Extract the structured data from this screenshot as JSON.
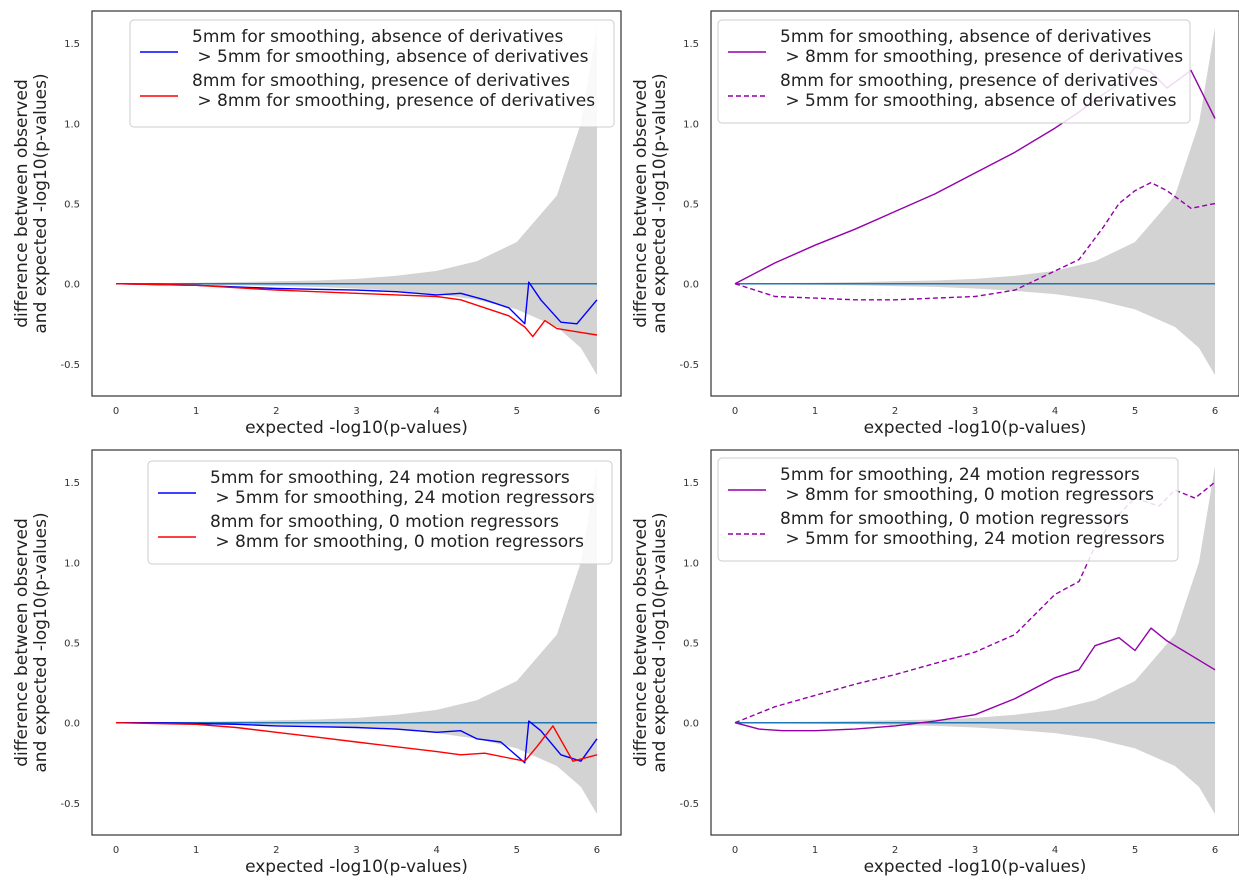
{
  "chart_data": [
    {
      "type": "line",
      "xlabel": "expected -log10(p-values)",
      "ylabel_line1": "difference between observed",
      "ylabel_line2": "and expected -log10(p-values)",
      "xlim": [
        -0.3,
        6.3
      ],
      "ylim": [
        -0.7,
        1.7
      ],
      "xticks": [
        "0",
        "1",
        "2",
        "3",
        "4",
        "5",
        "6"
      ],
      "yticks": [
        "-0.5",
        "0.0",
        "0.5",
        "1.0",
        "1.5"
      ],
      "legend": [
        {
          "line1": "5mm for smoothing, absence of derivatives",
          "line2": " > 5mm for smoothing, absence of derivatives",
          "color": "#0000ff",
          "dash": "solid"
        },
        {
          "line1": "8mm for smoothing, presence of derivatives",
          "line2": " > 8mm for smoothing, presence of derivatives",
          "color": "#ff0000",
          "dash": "solid"
        }
      ],
      "series": [
        {
          "color": "#0000ff",
          "dash": "solid",
          "x": [
            0,
            0.5,
            1.0,
            1.5,
            2.0,
            2.5,
            3.0,
            3.5,
            4.0,
            4.3,
            4.6,
            4.9,
            5.1,
            5.15,
            5.3,
            5.55,
            5.75,
            6.0
          ],
          "y": [
            0.0,
            -0.005,
            -0.01,
            -0.02,
            -0.03,
            -0.035,
            -0.04,
            -0.05,
            -0.07,
            -0.06,
            -0.1,
            -0.15,
            -0.25,
            0.01,
            -0.1,
            -0.24,
            -0.25,
            -0.1
          ]
        },
        {
          "color": "#ff0000",
          "dash": "solid",
          "x": [
            0,
            0.5,
            1.0,
            1.5,
            2.0,
            2.5,
            3.0,
            3.5,
            4.0,
            4.3,
            4.6,
            4.9,
            5.1,
            5.2,
            5.35,
            5.5,
            5.75,
            6.0
          ],
          "y": [
            0.0,
            -0.005,
            -0.01,
            -0.025,
            -0.04,
            -0.05,
            -0.06,
            -0.07,
            -0.08,
            -0.1,
            -0.15,
            -0.2,
            -0.27,
            -0.33,
            -0.23,
            -0.28,
            -0.3,
            -0.32
          ]
        }
      ],
      "band": {
        "color": "#d3d3d3",
        "x": [
          0,
          0.5,
          1.0,
          1.5,
          2.0,
          2.5,
          3.0,
          3.5,
          4.0,
          4.5,
          5.0,
          5.5,
          5.8,
          6.0
        ],
        "upper": [
          0.0,
          0.004,
          0.006,
          0.01,
          0.015,
          0.02,
          0.03,
          0.05,
          0.08,
          0.14,
          0.26,
          0.55,
          1.0,
          1.6
        ],
        "lower": [
          0.0,
          -0.004,
          -0.006,
          -0.01,
          -0.015,
          -0.02,
          -0.03,
          -0.045,
          -0.065,
          -0.1,
          -0.16,
          -0.27,
          -0.4,
          -0.57
        ]
      },
      "baseline": {
        "y": 0,
        "color": "#1f77b4"
      }
    },
    {
      "type": "line",
      "xlabel": "expected -log10(p-values)",
      "ylabel_line1": "difference between observed",
      "ylabel_line2": "and expected -log10(p-values)",
      "xlim": [
        -0.3,
        6.3
      ],
      "ylim": [
        -0.7,
        1.7
      ],
      "xticks": [
        "0",
        "1",
        "2",
        "3",
        "4",
        "5",
        "6"
      ],
      "yticks": [
        "-0.5",
        "0.0",
        "0.5",
        "1.0",
        "1.5"
      ],
      "legend": [
        {
          "line1": "5mm for smoothing, absence of derivatives",
          "line2": " > 8mm for smoothing, presence of derivatives",
          "color": "#9400aa",
          "dash": "solid"
        },
        {
          "line1": "8mm for smoothing, presence of derivatives",
          "line2": " > 5mm for smoothing, absence of derivatives",
          "color": "#9400aa",
          "dash": "dashed"
        }
      ],
      "series": [
        {
          "color": "#9400aa",
          "dash": "solid",
          "x": [
            0,
            0.5,
            1.0,
            1.5,
            2.0,
            2.5,
            3.0,
            3.5,
            4.0,
            4.3,
            4.6,
            4.9,
            5.0,
            5.2,
            5.4,
            5.7,
            6.0
          ],
          "y": [
            0.0,
            0.13,
            0.24,
            0.34,
            0.45,
            0.56,
            0.69,
            0.82,
            0.97,
            1.07,
            1.18,
            1.28,
            1.35,
            1.32,
            1.22,
            1.33,
            1.03
          ]
        },
        {
          "color": "#9400aa",
          "dash": "dashed",
          "x": [
            0,
            0.5,
            1.0,
            1.5,
            2.0,
            2.5,
            3.0,
            3.5,
            4.0,
            4.3,
            4.6,
            4.8,
            5.0,
            5.2,
            5.4,
            5.7,
            6.0
          ],
          "y": [
            0.0,
            -0.08,
            -0.09,
            -0.1,
            -0.1,
            -0.09,
            -0.08,
            -0.04,
            0.08,
            0.15,
            0.35,
            0.5,
            0.58,
            0.63,
            0.58,
            0.47,
            0.5
          ]
        }
      ],
      "band": {
        "color": "#d3d3d3",
        "x": [
          0,
          0.5,
          1.0,
          1.5,
          2.0,
          2.5,
          3.0,
          3.5,
          4.0,
          4.5,
          5.0,
          5.5,
          5.8,
          6.0
        ],
        "upper": [
          0.0,
          0.004,
          0.006,
          0.01,
          0.015,
          0.02,
          0.03,
          0.05,
          0.08,
          0.14,
          0.26,
          0.55,
          1.0,
          1.6
        ],
        "lower": [
          0.0,
          -0.004,
          -0.006,
          -0.01,
          -0.015,
          -0.02,
          -0.03,
          -0.045,
          -0.065,
          -0.1,
          -0.16,
          -0.27,
          -0.4,
          -0.57
        ]
      },
      "baseline": {
        "y": 0,
        "color": "#1f77b4"
      }
    },
    {
      "type": "line",
      "xlabel": "expected -log10(p-values)",
      "ylabel_line1": "difference between observed",
      "ylabel_line2": "and expected -log10(p-values)",
      "xlim": [
        -0.3,
        6.3
      ],
      "ylim": [
        -0.7,
        1.7
      ],
      "xticks": [
        "0",
        "1",
        "2",
        "3",
        "4",
        "5",
        "6"
      ],
      "yticks": [
        "-0.5",
        "0.0",
        "0.5",
        "1.0",
        "1.5"
      ],
      "legend": [
        {
          "line1": "5mm for smoothing, 24 motion regressors",
          "line2": " > 5mm for smoothing, 24 motion regressors",
          "color": "#0000ff",
          "dash": "solid"
        },
        {
          "line1": "8mm for smoothing, 0 motion regressors",
          "line2": " > 8mm for smoothing, 0 motion regressors",
          "color": "#ff0000",
          "dash": "solid"
        }
      ],
      "series": [
        {
          "color": "#0000ff",
          "dash": "solid",
          "x": [
            0,
            0.5,
            1.0,
            1.5,
            2.0,
            2.5,
            3.0,
            3.5,
            4.0,
            4.3,
            4.5,
            4.8,
            5.1,
            5.15,
            5.3,
            5.55,
            5.8,
            6.0
          ],
          "y": [
            0.0,
            0.0,
            -0.005,
            -0.01,
            -0.02,
            -0.025,
            -0.03,
            -0.04,
            -0.06,
            -0.05,
            -0.1,
            -0.12,
            -0.25,
            0.01,
            -0.05,
            -0.2,
            -0.24,
            -0.1
          ]
        },
        {
          "color": "#ff0000",
          "dash": "solid",
          "x": [
            0,
            0.5,
            1.0,
            1.5,
            2.0,
            2.5,
            3.0,
            3.5,
            4.0,
            4.3,
            4.6,
            4.9,
            5.1,
            5.25,
            5.45,
            5.7,
            6.0
          ],
          "y": [
            0.0,
            -0.005,
            -0.01,
            -0.03,
            -0.06,
            -0.09,
            -0.12,
            -0.15,
            -0.18,
            -0.2,
            -0.19,
            -0.22,
            -0.24,
            -0.15,
            -0.02,
            -0.24,
            -0.2
          ]
        }
      ],
      "band": {
        "color": "#d3d3d3",
        "x": [
          0,
          0.5,
          1.0,
          1.5,
          2.0,
          2.5,
          3.0,
          3.5,
          4.0,
          4.5,
          5.0,
          5.5,
          5.8,
          6.0
        ],
        "upper": [
          0.0,
          0.004,
          0.006,
          0.01,
          0.015,
          0.02,
          0.03,
          0.05,
          0.08,
          0.14,
          0.26,
          0.55,
          1.0,
          1.6
        ],
        "lower": [
          0.0,
          -0.004,
          -0.006,
          -0.01,
          -0.015,
          -0.02,
          -0.03,
          -0.045,
          -0.065,
          -0.1,
          -0.16,
          -0.27,
          -0.4,
          -0.57
        ]
      },
      "baseline": {
        "y": 0,
        "color": "#1f77b4"
      }
    },
    {
      "type": "line",
      "xlabel": "expected -log10(p-values)",
      "ylabel_line1": "difference between observed",
      "ylabel_line2": "and expected -log10(p-values)",
      "xlim": [
        -0.3,
        6.3
      ],
      "ylim": [
        -0.7,
        1.7
      ],
      "xticks": [
        "0",
        "1",
        "2",
        "3",
        "4",
        "5",
        "6"
      ],
      "yticks": [
        "-0.5",
        "0.0",
        "0.5",
        "1.0",
        "1.5"
      ],
      "legend": [
        {
          "line1": "5mm for smoothing, 24 motion regressors",
          "line2": " > 8mm for smoothing, 0 motion regressors",
          "color": "#9400aa",
          "dash": "solid"
        },
        {
          "line1": "8mm for smoothing, 0 motion regressors",
          "line2": " > 5mm for smoothing, 24 motion regressors",
          "color": "#9400aa",
          "dash": "dashed"
        }
      ],
      "series": [
        {
          "color": "#9400aa",
          "dash": "solid",
          "x": [
            0,
            0.3,
            0.6,
            1.0,
            1.5,
            2.0,
            2.5,
            3.0,
            3.5,
            4.0,
            4.3,
            4.5,
            4.8,
            5.0,
            5.2,
            5.4,
            5.7,
            6.0
          ],
          "y": [
            0.0,
            -0.04,
            -0.05,
            -0.05,
            -0.04,
            -0.02,
            0.01,
            0.05,
            0.15,
            0.28,
            0.33,
            0.48,
            0.53,
            0.45,
            0.59,
            0.51,
            0.42,
            0.33
          ]
        },
        {
          "color": "#9400aa",
          "dash": "dashed",
          "x": [
            0,
            0.5,
            1.0,
            1.5,
            2.0,
            2.5,
            3.0,
            3.5,
            4.0,
            4.3,
            4.5,
            4.7,
            5.0,
            5.3,
            5.5,
            5.75,
            6.0
          ],
          "y": [
            0.0,
            0.1,
            0.17,
            0.24,
            0.3,
            0.37,
            0.44,
            0.55,
            0.8,
            0.88,
            1.1,
            1.25,
            1.4,
            1.35,
            1.45,
            1.4,
            1.5
          ]
        }
      ],
      "band": {
        "color": "#d3d3d3",
        "x": [
          0,
          0.5,
          1.0,
          1.5,
          2.0,
          2.5,
          3.0,
          3.5,
          4.0,
          4.5,
          5.0,
          5.5,
          5.8,
          6.0
        ],
        "upper": [
          0.0,
          0.004,
          0.006,
          0.01,
          0.015,
          0.02,
          0.03,
          0.05,
          0.08,
          0.14,
          0.26,
          0.55,
          1.0,
          1.6
        ],
        "lower": [
          0.0,
          -0.004,
          -0.006,
          -0.01,
          -0.015,
          -0.02,
          -0.03,
          -0.045,
          -0.065,
          -0.1,
          -0.16,
          -0.27,
          -0.4,
          -0.57
        ]
      },
      "baseline": {
        "y": 0,
        "color": "#1f77b4"
      }
    }
  ]
}
